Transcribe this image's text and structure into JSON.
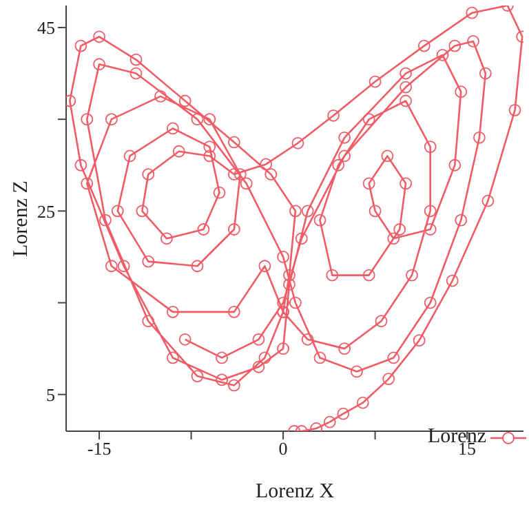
{
  "chart_data": {
    "type": "line",
    "xlabel": "Lorenz X",
    "ylabel": "Lorenz Z",
    "xlim": [
      -17.7,
      19.6
    ],
    "ylim": [
      1,
      47.4
    ],
    "xticks": [
      -15,
      {
        "value": -7.5,
        "label": null
      },
      0,
      {
        "value": 7.5,
        "label": null
      },
      15
    ],
    "yticks": [
      5,
      {
        "value": 15,
        "label": null
      },
      25,
      {
        "value": 35,
        "label": null
      },
      45
    ],
    "grid": false,
    "legend": "bottom right",
    "marker": "circle",
    "line_style": "solid",
    "series": [
      {
        "name": "Lorenz",
        "color": "#ef5c66",
        "x": [
          0.9,
          1.5,
          2.7,
          3.8,
          4.9,
          6.5,
          8.6,
          11.1,
          13.8,
          16.7,
          18.9,
          19.5,
          18.3,
          15.4,
          11.5,
          7.5,
          4.1,
          1.2,
          -1.4,
          -4,
          -6,
          -8.5,
          -11,
          -11.5,
          -9.5,
          -6.5,
          -5.2,
          -6,
          -9,
          -12.5,
          -13.5,
          -11,
          -7,
          -4,
          -3.5,
          -6,
          -10,
          -14,
          -16,
          -14,
          -9,
          -4,
          -1.5,
          0,
          2,
          5,
          8,
          10.5,
          12,
          12,
          10,
          7,
          4.5,
          3,
          4,
          7,
          9.5,
          10,
          8.5,
          7,
          7.5,
          9,
          12,
          14,
          14.5,
          13,
          10,
          5,
          2,
          0.5,
          0,
          -2,
          -5,
          -9,
          -13,
          -16.5,
          -17.4,
          -16.5,
          -15,
          -12,
          -8,
          -4,
          -1,
          1,
          0.5,
          0,
          -1.5,
          -4,
          -7,
          -11,
          -14.5,
          -16,
          -15,
          -12,
          -7,
          -3,
          0,
          1,
          3,
          6,
          9,
          12,
          14.5,
          16,
          16.5,
          15.5,
          14,
          10,
          5,
          1.5,
          0,
          -2,
          -5,
          -8
        ],
        "values": [
          1,
          1,
          1.3,
          2,
          2.9,
          4.1,
          6.7,
          10.9,
          17.4,
          26.1,
          36,
          44,
          47.4,
          46.6,
          43,
          39.1,
          35.4,
          32.4,
          30.1,
          29,
          31,
          31.5,
          29,
          25,
          22,
          23,
          27,
          32,
          34,
          31,
          25,
          19.5,
          19,
          23,
          29,
          35,
          37.5,
          35,
          28,
          19,
          14,
          14,
          19,
          14,
          11,
          10,
          13,
          18,
          25,
          32,
          37,
          35,
          30,
          24,
          18,
          18,
          23,
          28,
          31,
          28,
          25,
          22,
          23,
          30,
          38,
          42,
          40,
          33,
          25,
          17,
          10,
          8,
          6.6,
          9,
          19,
          30,
          37,
          43,
          44,
          41.5,
          37,
          32.5,
          29,
          25,
          18,
          14,
          9,
          6,
          7,
          13,
          24,
          35,
          41,
          40,
          35,
          28,
          20,
          15,
          9,
          7.5,
          9,
          15,
          24,
          33,
          40,
          43.5,
          43,
          38.5,
          31,
          22,
          15,
          11,
          9,
          11
        ]
      }
    ]
  }
}
